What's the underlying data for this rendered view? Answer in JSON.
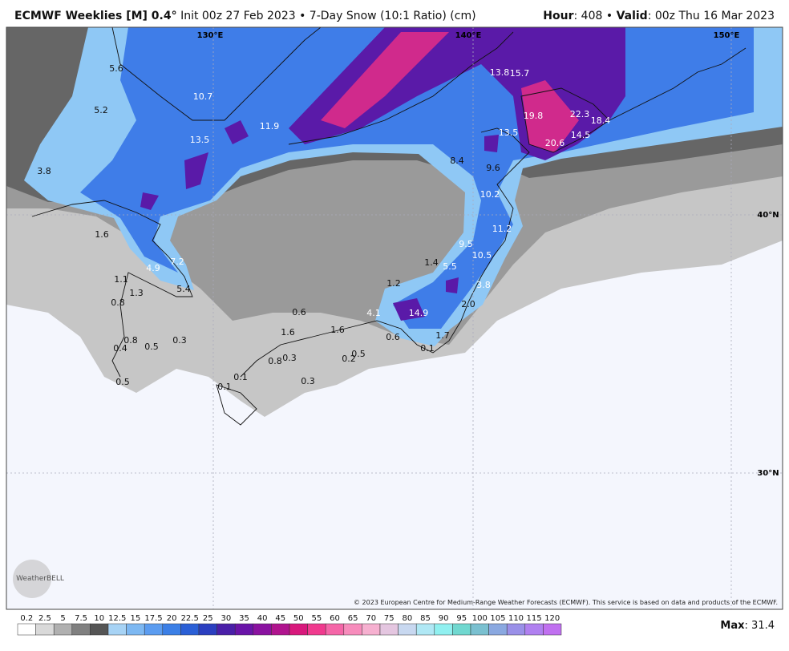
{
  "header": {
    "title_model": "ECMWF Weeklies [M] 0.4°",
    "title_detail": "Init 00z 27 Feb 2023 • 7-Day Snow (10:1 Ratio) (cm)",
    "hour_label": "Hour",
    "hour": ": 408 • ",
    "valid_label": "Valid",
    "valid": ": 00z Thu 16 Mar 2023"
  },
  "map": {
    "lon_labels": [
      "130°E",
      "140°E",
      "150°E"
    ],
    "lat_labels": [
      "40°N",
      "30°N"
    ],
    "point_values": [
      "5.6",
      "5.2",
      "10.7",
      "11.9",
      "13.5",
      "3.8",
      "1.6",
      "4.9",
      "7.2",
      "1.1",
      "5.4",
      "1.3",
      "0.8",
      "0.6",
      "4.1",
      "14.9",
      "2.0",
      "3.8",
      "5.5",
      "1.4",
      "1.2",
      "10.5",
      "9.5",
      "11.2",
      "10.2",
      "9.6",
      "8.4",
      "13.5",
      "13.8",
      "15.7",
      "19.8",
      "22.3",
      "18.4",
      "14.5",
      "20.6",
      "1.6",
      "1.6",
      "0.6",
      "0.1",
      "1.7",
      "0.5",
      "0.2",
      "0.3",
      "0.8",
      "0.3",
      "0.1",
      "0.1",
      "0.3",
      "0.5",
      "0.8",
      "0.4",
      "0.5"
    ],
    "logo": "WeatherBELL",
    "copyright": "© 2023 European Centre for Medium-Range Weather Forecasts (ECMWF). This service is based on data and products of the ECMWF."
  },
  "legend": {
    "ticks": [
      0.2,
      2.5,
      5,
      7.5,
      10,
      12.5,
      15,
      17.5,
      20,
      22.5,
      25,
      30,
      35,
      40,
      45,
      50,
      55,
      60,
      65,
      70,
      75,
      80,
      85,
      90,
      95,
      100,
      105,
      110,
      115,
      120
    ],
    "colors": [
      "#ffffff",
      "#d9d9d9",
      "#b0b0b0",
      "#808080",
      "#555555",
      "#a7d3f5",
      "#7db8f2",
      "#5b9cf0",
      "#3b7fe6",
      "#2a5fd6",
      "#2b3fc0",
      "#4a1fa8",
      "#6a14a8",
      "#8a12a0",
      "#b0148e",
      "#d8187c",
      "#f03a8e",
      "#f566a8",
      "#f78cbc",
      "#f6b0d0",
      "#e4c6e0",
      "#c8d8f0",
      "#b0e8f5",
      "#90f0f0",
      "#70d8d0",
      "#7ac0d0",
      "#8aa8e0",
      "#9a90e8",
      "#b080f0",
      "#c070f0"
    ],
    "max_label": "Max",
    "max": ": 31.4"
  }
}
